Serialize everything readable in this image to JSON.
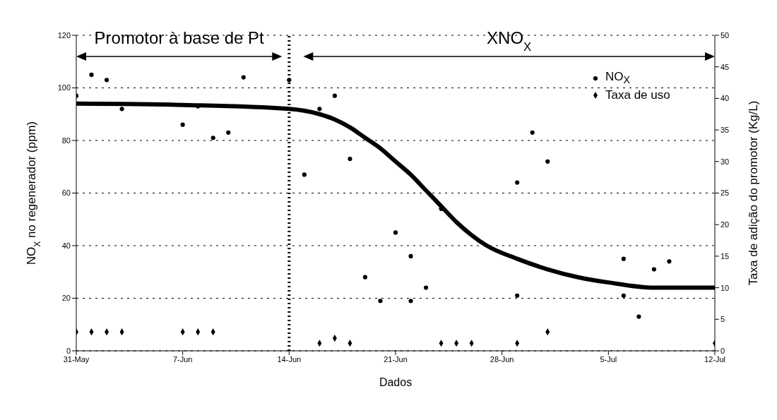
{
  "chart_data": {
    "type": "scatter",
    "xlabel": "Dados",
    "ylabel": "NO$_{X}$ no regenerador (ppm)",
    "y2label": "Taxa de adição do promotor (Kg/L)",
    "annotations": [
      "Promotor à base de Pt",
      "XNO$_{X}$"
    ],
    "xlim": [
      "--05-31",
      "--07-12"
    ],
    "xticks": [
      {
        "value": "--05-31",
        "label": "31-May"
      },
      {
        "value": "--06-07",
        "label": "7-Jun"
      },
      {
        "value": "--06-14",
        "label": "14-Jun"
      },
      {
        "value": "--06-21",
        "label": "21-Jun"
      },
      {
        "value": "--06-28",
        "label": "28-Jun"
      },
      {
        "value": "--07-05",
        "label": "5-Jul"
      },
      {
        "value": "--07-12",
        "label": "12-Jul"
      }
    ],
    "ylim": [
      0,
      120
    ],
    "yticks": [
      0,
      20,
      40,
      60,
      80,
      100,
      120
    ],
    "y2lim": [
      0,
      50
    ],
    "y2ticks": [
      0,
      5,
      10,
      15,
      20,
      25,
      30,
      35,
      40,
      45,
      50
    ],
    "grid": "y",
    "legend": "top right",
    "ref_lines": [
      {
        "axis": "x",
        "value": "--06-14",
        "line_style": "dotted",
        "color": "#000000"
      }
    ],
    "series": [
      {
        "name": "NO$_{X}$",
        "type": "scatter",
        "color": "#000000",
        "marker": "circle",
        "x": [
          "--05-31",
          "--06-01",
          "--06-02",
          "--06-03",
          "--06-07",
          "--06-08",
          "--06-09",
          "--06-10",
          "--06-11",
          "--06-14",
          "--06-15",
          "--06-16",
          "--06-17",
          "--06-18",
          "--06-19",
          "--06-20",
          "--06-21",
          "--06-22",
          "--06-22",
          "--06-23",
          "--06-24",
          "--06-29",
          "--06-29",
          "--06-30",
          "--07-01",
          "--07-06",
          "--07-06",
          "--07-07",
          "--07-08",
          "--07-09"
        ],
        "values": [
          97,
          105,
          103,
          92,
          86,
          93,
          81,
          83,
          104,
          103,
          67,
          92,
          97,
          73,
          28,
          19,
          45,
          36,
          19,
          24,
          54,
          64,
          21,
          83,
          72,
          35,
          21,
          13,
          31,
          34
        ]
      },
      {
        "name": "Taxa de uso",
        "type": "scatter",
        "axis": "y2",
        "color": "#000000",
        "marker": "diamond",
        "x": [
          "--05-31",
          "--06-01",
          "--06-02",
          "--06-03",
          "--06-07",
          "--06-08",
          "--06-09",
          "--06-16",
          "--06-17",
          "--06-18",
          "--06-24",
          "--06-25",
          "--06-26",
          "--06-29",
          "--07-01",
          "--07-12"
        ],
        "values": [
          3,
          3,
          3,
          3,
          3,
          3,
          3,
          1.2,
          2,
          1.2,
          1.2,
          1.2,
          1.2,
          1.2,
          3,
          1.2
        ]
      },
      {
        "type": "line",
        "color": "#000000",
        "x": [
          "--05-31",
          "--06-07",
          "--06-14",
          "--06-16",
          "--06-17",
          "--06-18",
          "--06-19",
          "--06-20",
          "--06-21",
          "--06-22",
          "--06-23",
          "--06-24",
          "--06-25",
          "--06-26",
          "--06-27",
          "--06-29",
          "--07-01",
          "--07-03",
          "--07-05",
          "--07-08",
          "--07-12"
        ],
        "values": [
          94,
          93.5,
          92,
          90,
          88,
          85,
          81,
          77,
          72,
          67,
          61,
          55,
          49,
          44,
          40,
          35,
          31,
          28,
          26,
          24,
          24
        ]
      }
    ]
  }
}
